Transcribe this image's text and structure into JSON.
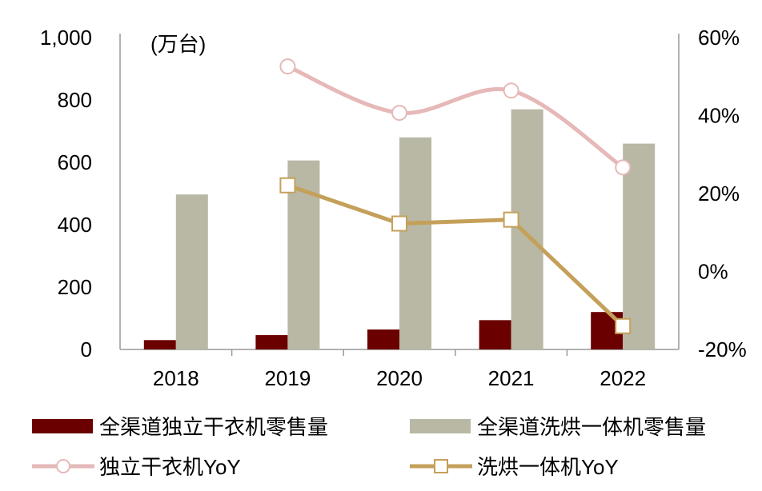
{
  "chart_data": {
    "type": "bar+line",
    "unit_label": "(万台)",
    "categories": [
      "2018",
      "2019",
      "2020",
      "2021",
      "2022"
    ],
    "y_left": {
      "range": [
        0,
        1000
      ],
      "ticks": [
        "0",
        "200",
        "400",
        "600",
        "800",
        "1,000"
      ],
      "tick_values": [
        0,
        200,
        400,
        600,
        800,
        1000
      ]
    },
    "y_right": {
      "range": [
        -20,
        60
      ],
      "ticks": [
        "-20%",
        "0%",
        "20%",
        "40%",
        "60%"
      ],
      "tick_values": [
        -20,
        0,
        20,
        40,
        60
      ]
    },
    "grid": false,
    "legend_position": "bottom",
    "bar_series": [
      {
        "name": "全渠道独立干衣机零售量",
        "color": "#6b0000",
        "values": [
          30,
          46,
          64,
          94,
          120
        ]
      },
      {
        "name": "全渠道洗烘一体机零售量",
        "color": "#b8b8a4",
        "values": [
          497,
          606,
          680,
          770,
          660
        ]
      }
    ],
    "line_series": [
      {
        "name": "独立干衣机YoY",
        "color": "#e6b8b8",
        "marker": "circle",
        "smooth": true,
        "values": [
          null,
          52.6,
          40.7,
          46.4,
          26.7
        ]
      },
      {
        "name": "洗烘一体机YoY",
        "color": "#c4a05a",
        "marker": "square",
        "smooth": false,
        "values": [
          null,
          22.1,
          12.3,
          13.3,
          -14.0
        ]
      }
    ]
  }
}
